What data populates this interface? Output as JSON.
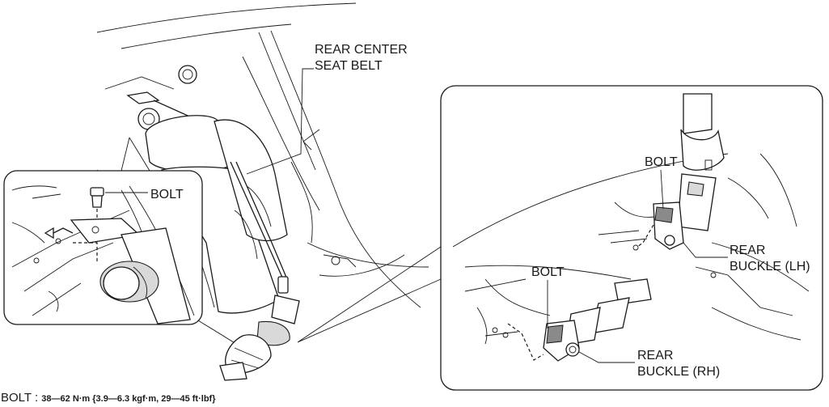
{
  "labels": {
    "rear_center_seat_belt_line1": "REAR CENTER",
    "rear_center_seat_belt_line2": "SEAT BELT",
    "bolt_left_inset": "BOLT",
    "bolt_upper_right": "BOLT",
    "bolt_lower_right": "BOLT",
    "rear_buckle_lh_line1": "REAR",
    "rear_buckle_lh_line2": "BUCKLE (LH)",
    "rear_buckle_rh_line1": "REAR",
    "rear_buckle_rh_line2": "BUCKLE (RH)"
  },
  "torque_spec": {
    "prefix": "BOLT : ",
    "value": "38—62 N·m {3.9—6.3 kgf·m, 29—45 ft·lbf}"
  }
}
